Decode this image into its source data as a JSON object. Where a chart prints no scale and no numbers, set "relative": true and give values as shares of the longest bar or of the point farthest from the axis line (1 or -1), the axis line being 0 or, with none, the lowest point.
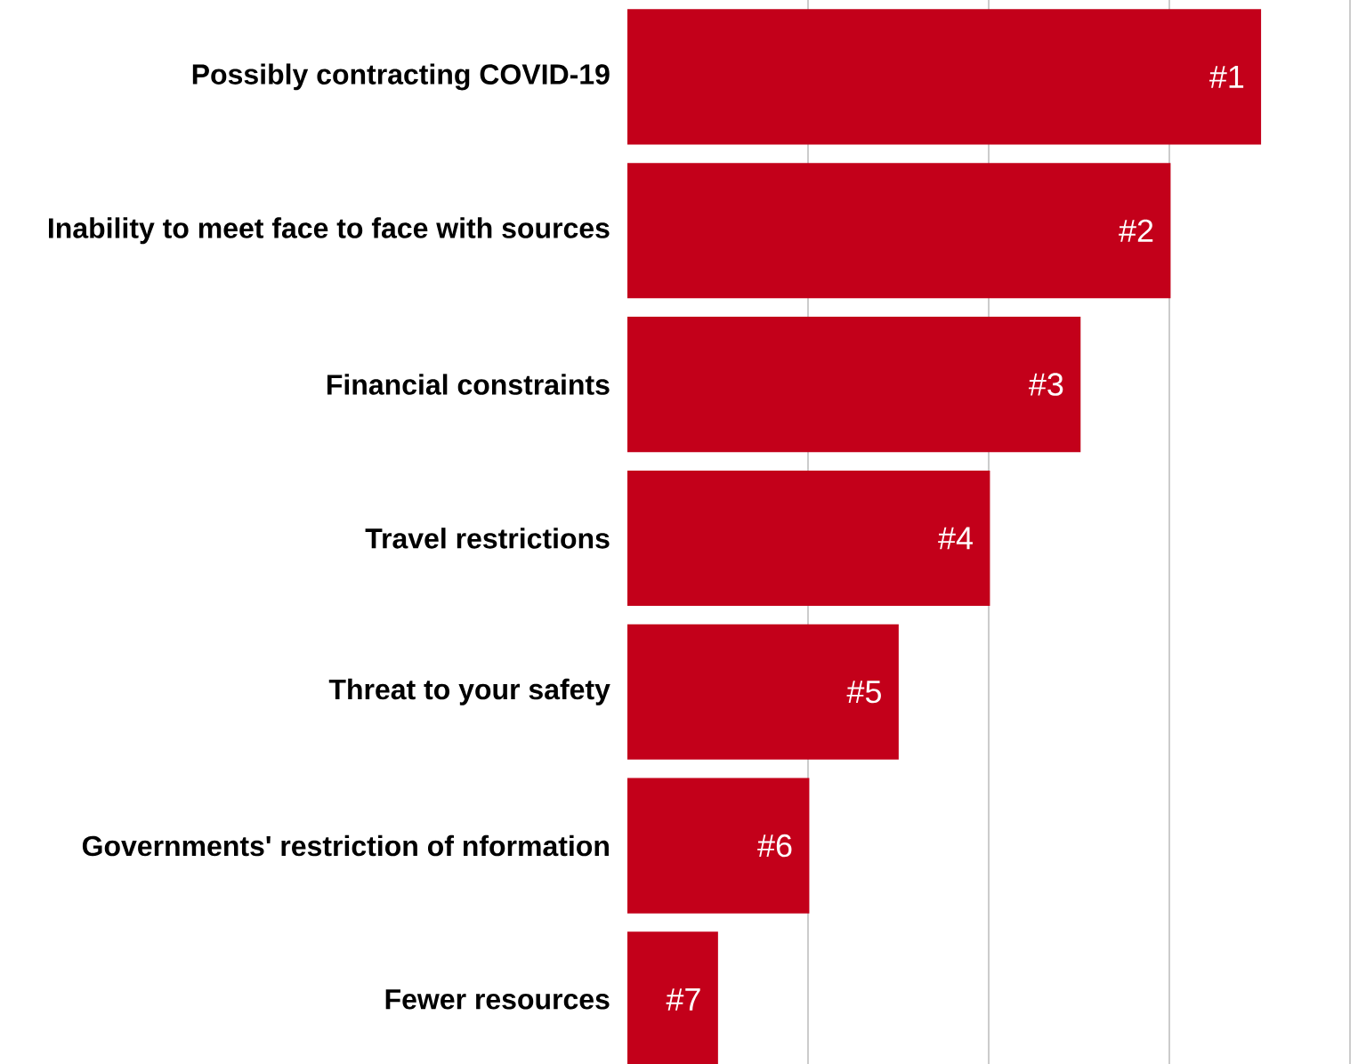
{
  "chart_data": {
    "type": "bar",
    "orientation": "horizontal",
    "relative": true,
    "grid": "x",
    "categories": [
      "Possibly contracting COVID-19",
      "Inability to meet face to face with sources",
      "Financial constraints",
      "Travel restrictions",
      "Threat to your safety",
      "Governments' restriction of nformation",
      "Fewer resources"
    ],
    "values": [
      1,
      0.857,
      0.715,
      0.572,
      0.428,
      0.287,
      0.143
    ],
    "annotations": [
      {
        "text": "#1",
        "x": 1,
        "y": "Possibly contracting COVID-19"
      },
      {
        "text": "#2",
        "x": 0.857,
        "y": "Inability to meet face to face with sources"
      },
      {
        "text": "#3",
        "x": 0.715,
        "y": "Financial constraints"
      },
      {
        "text": "#4",
        "x": 0.572,
        "y": "Travel restrictions"
      },
      {
        "text": "#5",
        "x": 0.428,
        "y": "Threat to your safety"
      },
      {
        "text": "#6",
        "x": 0.287,
        "y": "Governments' restriction of nformation"
      },
      {
        "text": "#7",
        "x": 0.143,
        "y": "Fewer resources"
      }
    ],
    "color": "#c3001a"
  }
}
